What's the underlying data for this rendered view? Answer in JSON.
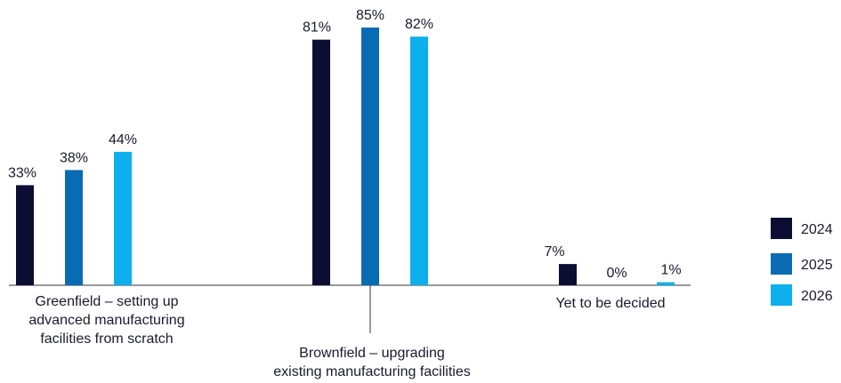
{
  "chart_data": {
    "type": "bar",
    "categories": [
      [
        "Greenfield – setting up",
        "advanced manufacturing",
        "facilities from scratch"
      ],
      [
        "Brownfield – upgrading",
        "existing manufacturing facilities"
      ],
      [
        "Yet to be decided"
      ]
    ],
    "series": [
      {
        "name": "2024",
        "values": [
          33,
          81,
          7
        ],
        "color": "#0b0d33"
      },
      {
        "name": "2025",
        "values": [
          38,
          85,
          0
        ],
        "color": "#0a6bb5"
      },
      {
        "name": "2026",
        "values": [
          44,
          82,
          1
        ],
        "color": "#0db0ec"
      }
    ],
    "value_suffix": "%",
    "ylim": [
      0,
      85
    ],
    "grid": false,
    "legend_position": "right"
  }
}
